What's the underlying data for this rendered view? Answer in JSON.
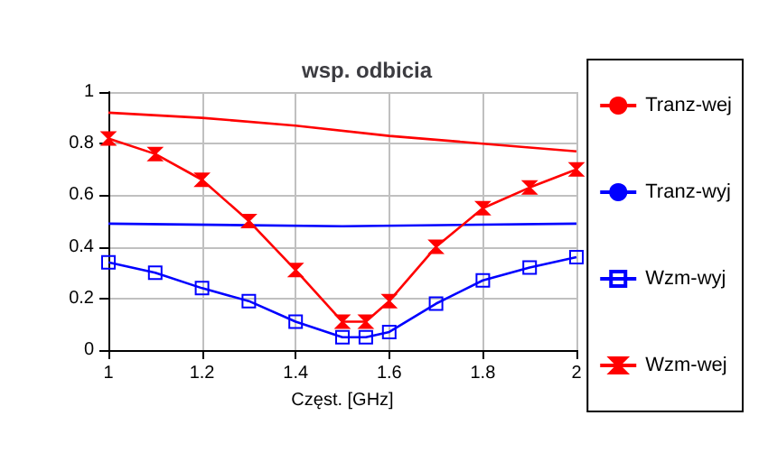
{
  "chart_data": {
    "type": "line",
    "title": "wsp. odbicia",
    "xlabel": "Częst. [GHz]",
    "xlim": [
      1,
      2
    ],
    "xticks": [
      1,
      1.2,
      1.4,
      1.6,
      1.8,
      2
    ],
    "ylim": [
      0,
      1
    ],
    "yticks": [
      0,
      0.2,
      0.4,
      0.6,
      0.8,
      1
    ],
    "grid": true,
    "legend": "right",
    "line_style": "solid",
    "series": [
      {
        "name": "Tranz-wej",
        "color": "#ff0000",
        "marker": "none",
        "x": [
          1,
          1.2,
          1.4,
          1.6,
          1.8,
          2
        ],
        "values": [
          0.92,
          0.9,
          0.87,
          0.83,
          0.8,
          0.77
        ]
      },
      {
        "name": "Tranz-wyj",
        "color": "#0000ff",
        "marker": "none",
        "x": [
          1,
          1.5,
          2
        ],
        "values": [
          0.49,
          0.48,
          0.49
        ]
      },
      {
        "name": "Wzm-wyj",
        "color": "#0000ff",
        "marker": "square",
        "x": [
          1,
          1.1,
          1.2,
          1.3,
          1.4,
          1.5,
          1.55,
          1.6,
          1.7,
          1.8,
          1.9,
          2
        ],
        "values": [
          0.34,
          0.3,
          0.24,
          0.19,
          0.11,
          0.05,
          0.05,
          0.07,
          0.18,
          0.27,
          0.32,
          0.36
        ]
      },
      {
        "name": "Wzm-wej",
        "color": "#ff0000",
        "marker": "cross",
        "x": [
          1,
          1.1,
          1.2,
          1.3,
          1.4,
          1.5,
          1.55,
          1.6,
          1.7,
          1.8,
          1.9,
          2
        ],
        "values": [
          0.82,
          0.76,
          0.66,
          0.5,
          0.31,
          0.11,
          0.11,
          0.19,
          0.4,
          0.55,
          0.63,
          0.7
        ]
      }
    ]
  }
}
